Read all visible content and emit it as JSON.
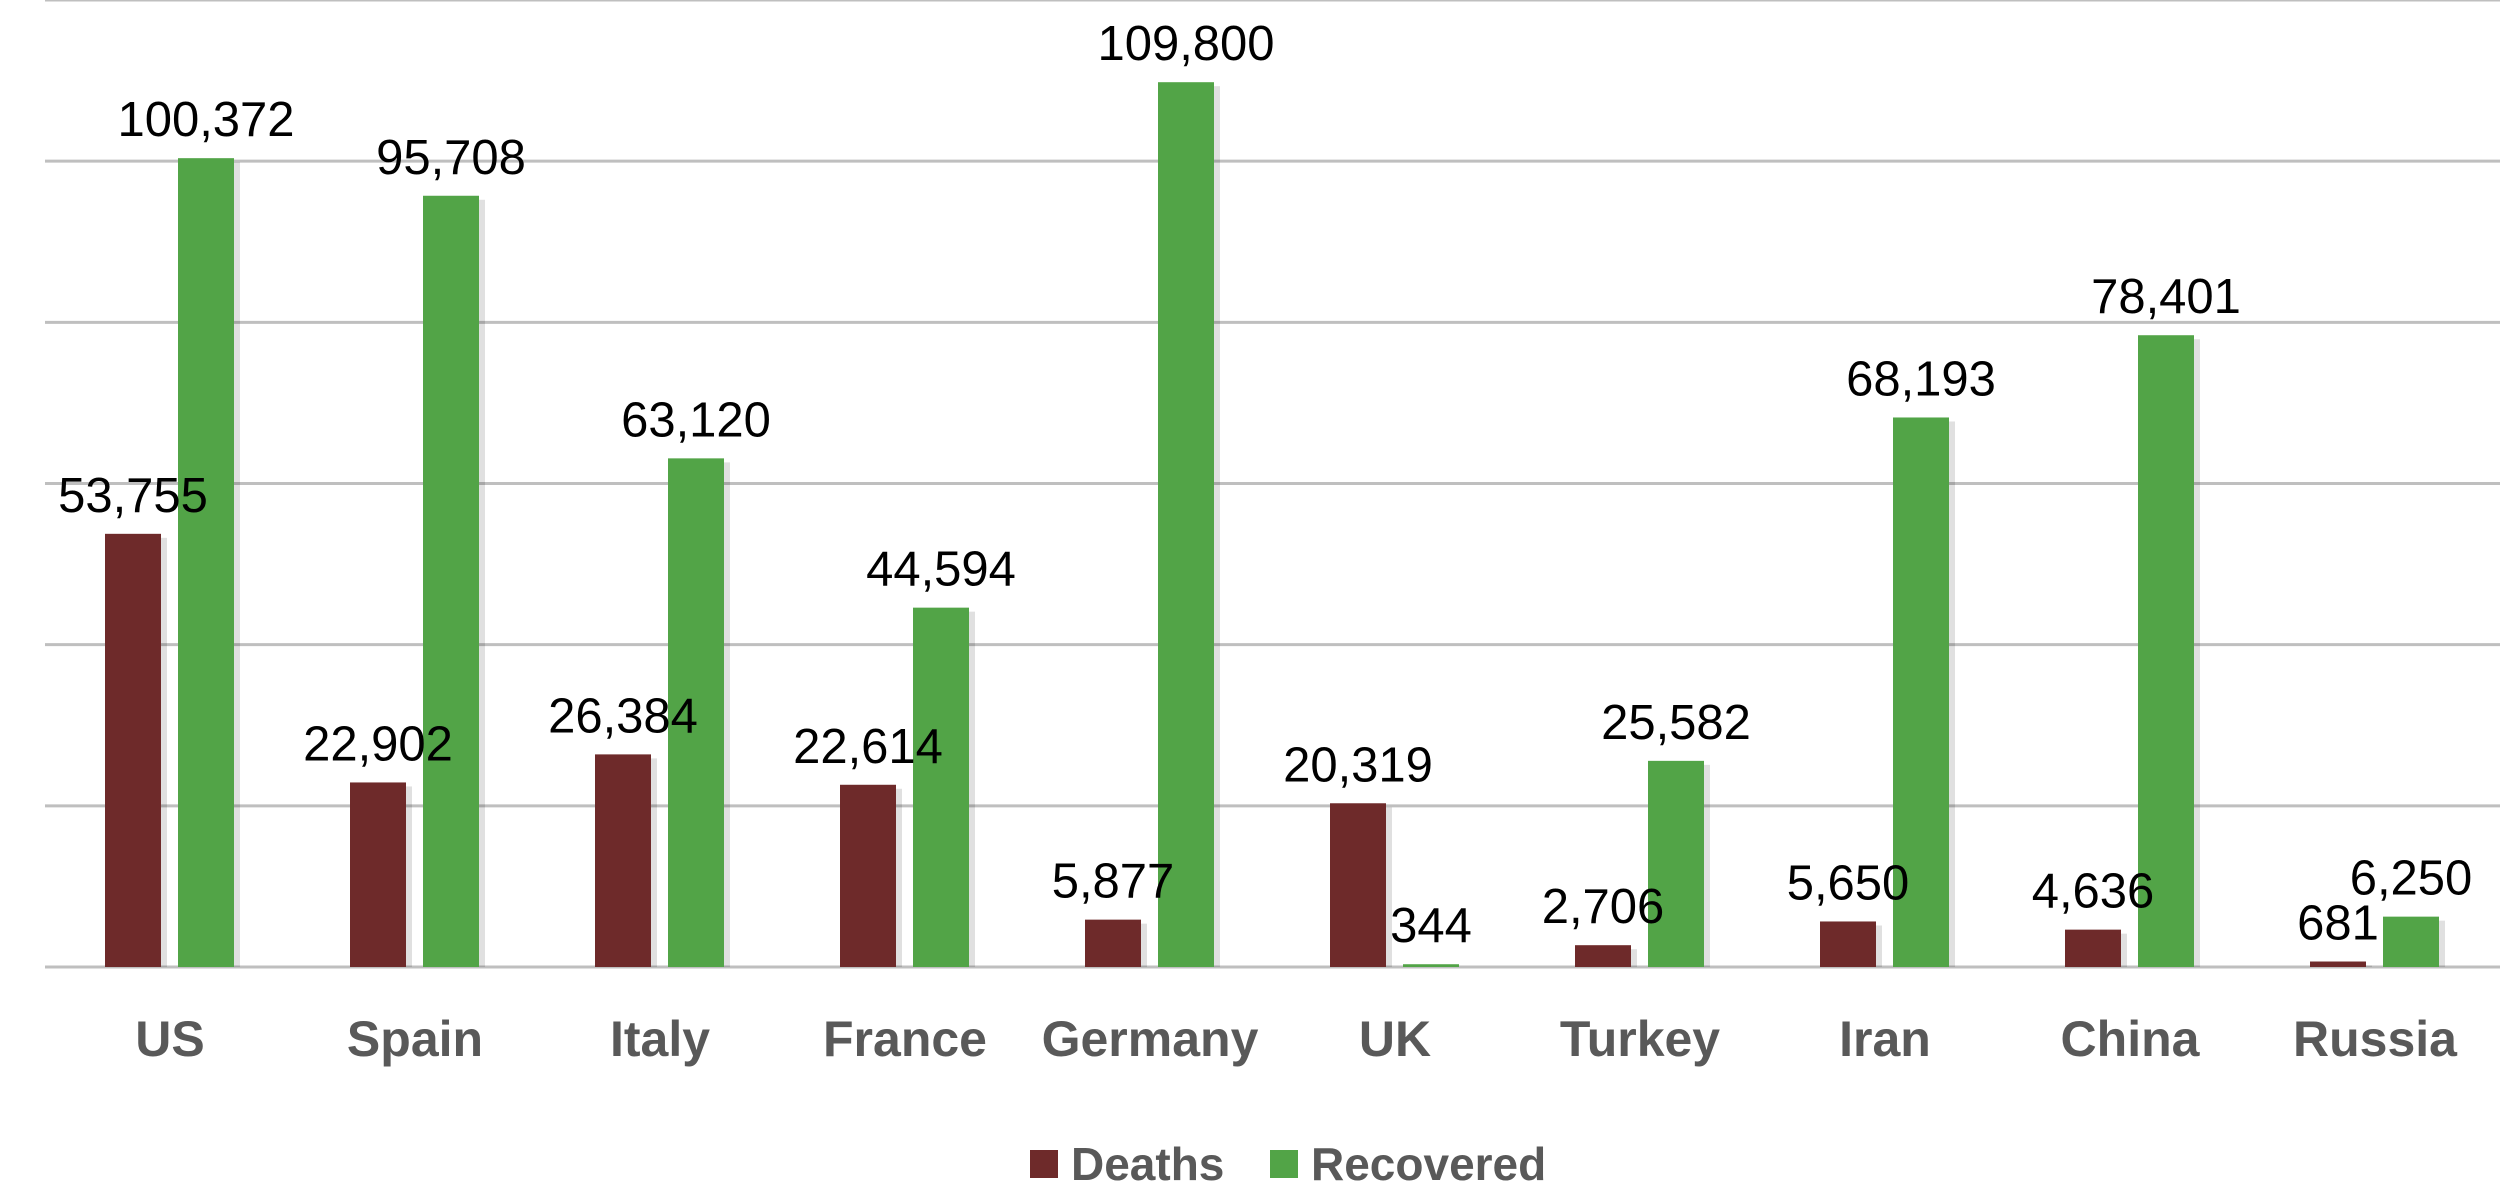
{
  "chart_data": {
    "type": "bar",
    "title": "",
    "xlabel": "",
    "ylabel": "",
    "categories": [
      "US",
      "Spain",
      "Italy",
      "France",
      "Germany",
      "UK",
      "Turkey",
      "Iran",
      "China",
      "Russia"
    ],
    "series": [
      {
        "name": "Deaths",
        "color": "#6e2a2a",
        "values": [
          53755,
          22902,
          26384,
          22614,
          5877,
          20319,
          2706,
          5650,
          4636,
          681
        ]
      },
      {
        "name": "Recovered",
        "color": "#52a447",
        "values": [
          100372,
          95708,
          63120,
          44594,
          109800,
          344,
          25582,
          68193,
          78401,
          6250
        ]
      }
    ],
    "data_labels": [
      [
        "53,755",
        "22,902",
        "26,384",
        "22,614",
        "5,877",
        "20,319",
        "2,706",
        "5,650",
        "4,636",
        "681"
      ],
      [
        "100,372",
        "95,708",
        "63,120",
        "44,594",
        "109,800",
        "344",
        "25,582",
        "68,193",
        "78,401",
        "6,250"
      ]
    ],
    "ylim": [
      0,
      120000
    ],
    "gridlines": [
      0,
      20000,
      40000,
      60000,
      80000,
      100000,
      120000
    ],
    "grid": true,
    "y_tick_labels_shown": false,
    "legend": {
      "position": "bottom",
      "entries": [
        "Deaths",
        "Recovered"
      ]
    }
  }
}
